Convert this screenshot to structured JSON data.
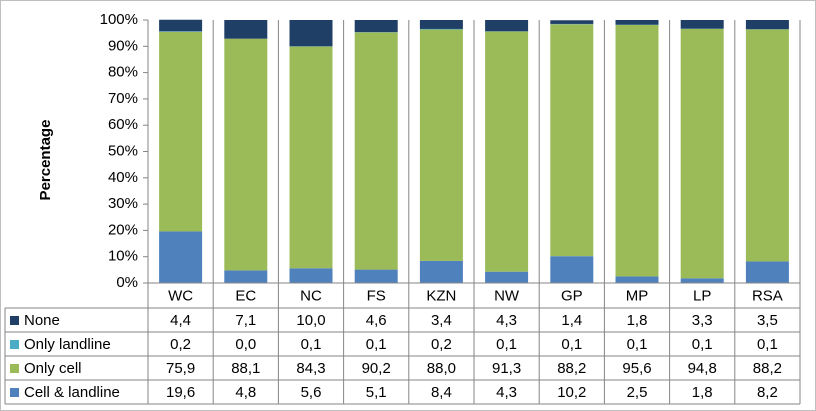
{
  "chart_data": {
    "type": "stacked-bar",
    "y_label": "Percentage",
    "categories": [
      "WC",
      "EC",
      "NC",
      "FS",
      "KZN",
      "NW",
      "GP",
      "MP",
      "LP",
      "RSA"
    ],
    "series": [
      {
        "name": "None",
        "color": "#1f3f66",
        "values": [
          4.4,
          7.1,
          10.0,
          4.6,
          3.4,
          4.3,
          1.4,
          1.8,
          3.3,
          3.5
        ],
        "value_labels": [
          "4,4",
          "7,1",
          "10,0",
          "4,6",
          "3,4",
          "4,3",
          "1,4",
          "1,8",
          "3,3",
          "3,5"
        ]
      },
      {
        "name": "Only landline",
        "color": "#4bacc6",
        "values": [
          0.2,
          0.0,
          0.1,
          0.1,
          0.2,
          0.1,
          0.1,
          0.1,
          0.1,
          0.1
        ],
        "value_labels": [
          "0,2",
          "0,0",
          "0,1",
          "0,1",
          "0,2",
          "0,1",
          "0,1",
          "0,1",
          "0,1",
          "0,1"
        ]
      },
      {
        "name": "Only cell",
        "color": "#9bbb59",
        "values": [
          75.9,
          88.1,
          84.3,
          90.2,
          88.0,
          91.3,
          88.2,
          95.6,
          94.8,
          88.2
        ],
        "value_labels": [
          "75,9",
          "88,1",
          "84,3",
          "90,2",
          "88,0",
          "91,3",
          "88,2",
          "95,6",
          "94,8",
          "88,2"
        ]
      },
      {
        "name": "Cell & landline",
        "color": "#4f81bd",
        "values": [
          19.6,
          4.8,
          5.6,
          5.1,
          8.4,
          4.3,
          10.2,
          2.5,
          1.8,
          8.2
        ],
        "value_labels": [
          "19,6",
          "4,8",
          "5,6",
          "5,1",
          "8,4",
          "4,3",
          "10,2",
          "2,5",
          "1,8",
          "8,2"
        ]
      }
    ],
    "ylim": [
      0,
      100
    ],
    "yticks": [
      {
        "value": 0,
        "label": "0%"
      },
      {
        "value": 10,
        "label": "10%"
      },
      {
        "value": 20,
        "label": "20%"
      },
      {
        "value": 30,
        "label": "30%"
      },
      {
        "value": 40,
        "label": "40%"
      },
      {
        "value": 50,
        "label": "50%"
      },
      {
        "value": 60,
        "label": "60%"
      },
      {
        "value": 70,
        "label": "70%"
      },
      {
        "value": 80,
        "label": "80%"
      },
      {
        "value": 90,
        "label": "90%"
      },
      {
        "value": 100,
        "label": "100%"
      }
    ]
  }
}
